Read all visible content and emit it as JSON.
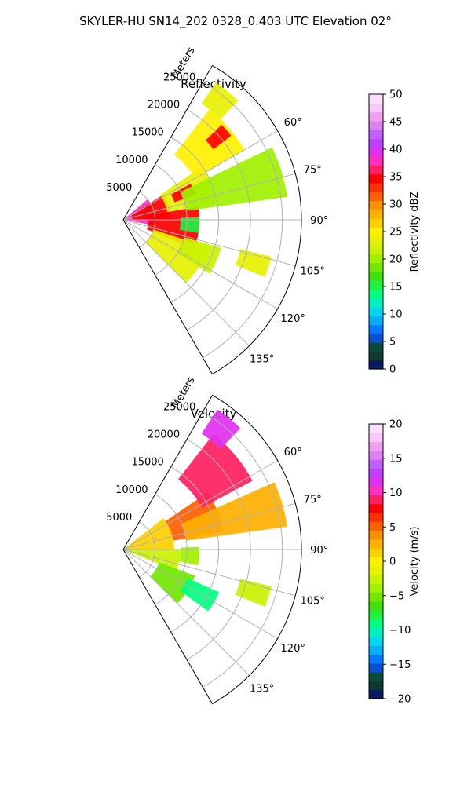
{
  "figure": {
    "title": "SKYLER-HU  SN14_202  0328_0.403 UTC Elevation 02°"
  },
  "chart_data": [
    {
      "type": "heatmap",
      "projection": "polar-sector",
      "title": "Reflectivity",
      "theta_range_deg": [
        30,
        150
      ],
      "theta_ticks": [
        60,
        75,
        90,
        105,
        120,
        135
      ],
      "theta_tick_labels": [
        "60°",
        "75°",
        "90°",
        "105°",
        "120°",
        "135°"
      ],
      "r_label": "Meters",
      "r_max": 28000,
      "r_ticks": [
        5000,
        10000,
        15000,
        20000,
        25000
      ],
      "r_tick_labels": [
        "5000",
        "10000",
        "15000",
        "20000",
        "25000"
      ],
      "grid": true,
      "colorbar": {
        "label": "Reflectivity dBZ",
        "range": [
          0,
          50
        ],
        "ticks": [
          0,
          5,
          10,
          15,
          20,
          25,
          30,
          35,
          40,
          45,
          50
        ],
        "tick_labels": [
          "0",
          "5",
          "10",
          "15",
          "20",
          "25",
          "30",
          "35",
          "40",
          "45",
          "50"
        ]
      },
      "palette": [
        "#0a1a60",
        "#0f3a30",
        "#0a4a3a",
        "#0a50d0",
        "#0078ff",
        "#00b0ff",
        "#00d8f0",
        "#00f0c0",
        "#00ff80",
        "#20f040",
        "#40e010",
        "#70e800",
        "#a0f000",
        "#c8f200",
        "#e8f000",
        "#fff000",
        "#ffd000",
        "#ffb000",
        "#ff9000",
        "#ff6000",
        "#ff3000",
        "#ff0000",
        "#ff2060",
        "#ff30c0",
        "#e030f0",
        "#c040ff",
        "#c060ff",
        "#e080f0",
        "#f0a0f0",
        "#f8c8f8",
        "#fbe0fb"
      ],
      "regions": [
        {
          "r0": 0,
          "r1": 5000,
          "t0": 50,
          "t1": 100,
          "value": 38
        },
        {
          "r0": 1500,
          "r1": 7500,
          "t0": 58,
          "t1": 90,
          "value": 34
        },
        {
          "r0": 4000,
          "r1": 12000,
          "t0": 80,
          "t1": 112,
          "value": 34
        },
        {
          "r0": 7000,
          "r1": 15000,
          "t0": 56,
          "t1": 80,
          "value": 24
        },
        {
          "r0": 8500,
          "r1": 12000,
          "t0": 62,
          "t1": 71,
          "value": 35
        },
        {
          "r0": 5000,
          "r1": 14000,
          "t0": 108,
          "t1": 135,
          "value": 24
        },
        {
          "r0": 13000,
          "r1": 22000,
          "t0": 38,
          "t1": 60,
          "value": 25
        },
        {
          "r0": 18000,
          "r1": 21500,
          "t0": 46,
          "t1": 52,
          "value": 34
        },
        {
          "r0": 22000,
          "r1": 26000,
          "t0": 34,
          "t1": 44,
          "value": 24
        },
        {
          "r0": 10000,
          "r1": 26000,
          "t0": 64,
          "t1": 82,
          "value": 20
        },
        {
          "r0": 10000,
          "r1": 16000,
          "t0": 106,
          "t1": 122,
          "value": 22
        },
        {
          "r0": 9000,
          "r1": 12000,
          "t0": 88,
          "t1": 100,
          "value": 16
        },
        {
          "r0": 19000,
          "r1": 24000,
          "t0": 104,
          "t1": 112,
          "value": 23
        }
      ]
    },
    {
      "type": "heatmap",
      "projection": "polar-sector",
      "title": "Velocity",
      "theta_range_deg": [
        30,
        150
      ],
      "theta_ticks": [
        60,
        75,
        90,
        105,
        120,
        135
      ],
      "theta_tick_labels": [
        "60°",
        "75°",
        "90°",
        "105°",
        "120°",
        "135°"
      ],
      "r_label": "Meters",
      "r_max": 28000,
      "r_ticks": [
        5000,
        10000,
        15000,
        20000,
        25000
      ],
      "r_tick_labels": [
        "5000",
        "10000",
        "15000",
        "20000",
        "25000"
      ],
      "grid": true,
      "colorbar": {
        "label": "Velocity (m/s)",
        "range": [
          -20,
          20
        ],
        "ticks": [
          -20,
          -15,
          -10,
          -5,
          0,
          5,
          10,
          15,
          20
        ],
        "tick_labels": [
          "−20",
          "−15",
          "−10",
          "−5",
          "0",
          "5",
          "10",
          "15",
          "20"
        ]
      },
      "palette": [
        "#0a1a60",
        "#0f3a30",
        "#0a4a3a",
        "#0a50d0",
        "#0078ff",
        "#00b0ff",
        "#00d8f0",
        "#00f0c0",
        "#00ff80",
        "#20f040",
        "#40e010",
        "#70e800",
        "#a0f000",
        "#c8f200",
        "#e8f000",
        "#fff000",
        "#ffd000",
        "#ffb000",
        "#ff9000",
        "#ff6000",
        "#ff3000",
        "#ff0000",
        "#ff2060",
        "#ff30c0",
        "#e030f0",
        "#c040ff",
        "#c060ff",
        "#e080f0",
        "#f0a0f0",
        "#f8c8f8",
        "#fbe0fb"
      ],
      "regions": [
        {
          "r0": 0,
          "r1": 8000,
          "t0": 52,
          "t1": 90,
          "value": 1
        },
        {
          "r0": 0,
          "r1": 9000,
          "t0": 90,
          "t1": 112,
          "value": -2
        },
        {
          "r0": 8000,
          "r1": 16000,
          "t0": 56,
          "t1": 80,
          "value": 5
        },
        {
          "r0": 14000,
          "r1": 23000,
          "t0": 38,
          "t1": 62,
          "value": 9
        },
        {
          "r0": 22000,
          "r1": 26500,
          "t0": 34,
          "t1": 44,
          "value": 12
        },
        {
          "r0": 10000,
          "r1": 26000,
          "t0": 66,
          "t1": 82,
          "value": 2
        },
        {
          "r0": 6000,
          "r1": 12000,
          "t0": 110,
          "t1": 135,
          "value": -5
        },
        {
          "r0": 11000,
          "r1": 16500,
          "t0": 114,
          "t1": 126,
          "value": -9
        },
        {
          "r0": 9000,
          "r1": 12000,
          "t0": 88,
          "t1": 102,
          "value": -4
        },
        {
          "r0": 19000,
          "r1": 24000,
          "t0": 104,
          "t1": 112,
          "value": -2
        }
      ]
    }
  ]
}
